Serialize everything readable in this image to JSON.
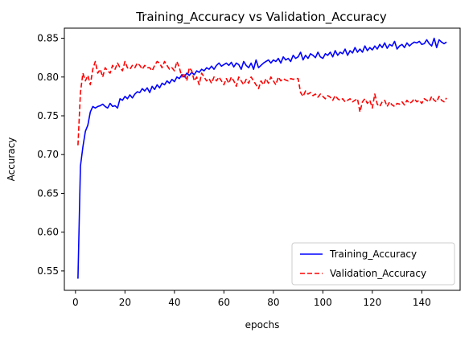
{
  "chart_data": {
    "type": "line",
    "title": "Training_Accuracy vs Validation_Accuracy",
    "xlabel": "epochs",
    "ylabel": "Accuracy",
    "xlim": [
      -4.5,
      155.5
    ],
    "ylim": [
      0.525,
      0.863
    ],
    "xticks": [
      0,
      20,
      40,
      60,
      80,
      100,
      120,
      140
    ],
    "xtick_labels": [
      "0",
      "20",
      "40",
      "60",
      "80",
      "100",
      "120",
      "140"
    ],
    "yticks": [
      0.55,
      0.6,
      0.65,
      0.7,
      0.75,
      0.8,
      0.85
    ],
    "ytick_labels": [
      "0.55",
      "0.60",
      "0.65",
      "0.70",
      "0.75",
      "0.80",
      "0.85"
    ],
    "grid": false,
    "legend_position": "lower-right",
    "series": [
      {
        "name": "Training_Accuracy",
        "color": "#0000ff",
        "style": "solid",
        "x": [
          1,
          2,
          3,
          4,
          5,
          6,
          7,
          8,
          9,
          10,
          11,
          12,
          13,
          14,
          15,
          16,
          17,
          18,
          19,
          20,
          21,
          22,
          23,
          24,
          25,
          26,
          27,
          28,
          29,
          30,
          31,
          32,
          33,
          34,
          35,
          36,
          37,
          38,
          39,
          40,
          41,
          42,
          43,
          44,
          45,
          46,
          47,
          48,
          49,
          50,
          51,
          52,
          53,
          54,
          55,
          56,
          57,
          58,
          59,
          60,
          61,
          62,
          63,
          64,
          65,
          66,
          67,
          68,
          69,
          70,
          71,
          72,
          73,
          74,
          75,
          76,
          77,
          78,
          79,
          80,
          81,
          82,
          83,
          84,
          85,
          86,
          87,
          88,
          89,
          90,
          91,
          92,
          93,
          94,
          95,
          96,
          97,
          98,
          99,
          100,
          101,
          102,
          103,
          104,
          105,
          106,
          107,
          108,
          109,
          110,
          111,
          112,
          113,
          114,
          115,
          116,
          117,
          118,
          119,
          120,
          121,
          122,
          123,
          124,
          125,
          126,
          127,
          128,
          129,
          130,
          131,
          132,
          133,
          134,
          135,
          136,
          137,
          138,
          139,
          140,
          141,
          142,
          143,
          144,
          145,
          146,
          147,
          148,
          149,
          150
        ],
        "values": [
          0.54,
          0.685,
          0.71,
          0.73,
          0.738,
          0.755,
          0.762,
          0.76,
          0.762,
          0.763,
          0.765,
          0.762,
          0.76,
          0.766,
          0.762,
          0.763,
          0.76,
          0.772,
          0.77,
          0.775,
          0.772,
          0.777,
          0.773,
          0.778,
          0.781,
          0.78,
          0.785,
          0.782,
          0.786,
          0.78,
          0.788,
          0.784,
          0.79,
          0.786,
          0.792,
          0.79,
          0.795,
          0.792,
          0.797,
          0.794,
          0.8,
          0.798,
          0.803,
          0.8,
          0.805,
          0.802,
          0.806,
          0.803,
          0.808,
          0.806,
          0.81,
          0.808,
          0.812,
          0.81,
          0.814,
          0.81,
          0.815,
          0.818,
          0.814,
          0.816,
          0.818,
          0.815,
          0.819,
          0.813,
          0.818,
          0.816,
          0.81,
          0.82,
          0.815,
          0.812,
          0.818,
          0.81,
          0.822,
          0.812,
          0.815,
          0.818,
          0.82,
          0.822,
          0.818,
          0.822,
          0.82,
          0.824,
          0.818,
          0.826,
          0.822,
          0.824,
          0.82,
          0.828,
          0.824,
          0.826,
          0.832,
          0.822,
          0.828,
          0.824,
          0.83,
          0.828,
          0.825,
          0.832,
          0.826,
          0.824,
          0.83,
          0.828,
          0.832,
          0.826,
          0.834,
          0.828,
          0.832,
          0.83,
          0.836,
          0.828,
          0.834,
          0.831,
          0.838,
          0.832,
          0.836,
          0.832,
          0.84,
          0.834,
          0.838,
          0.835,
          0.84,
          0.836,
          0.842,
          0.838,
          0.844,
          0.837,
          0.842,
          0.84,
          0.846,
          0.836,
          0.84,
          0.842,
          0.838,
          0.844,
          0.84,
          0.843,
          0.845,
          0.844,
          0.846,
          0.842,
          0.843,
          0.848,
          0.843,
          0.84,
          0.85,
          0.838,
          0.848,
          0.845,
          0.843,
          0.845
        ]
      },
      {
        "name": "Validation_Accuracy",
        "color": "#ff0000",
        "style": "dashed",
        "x": [
          1,
          2,
          3,
          4,
          5,
          6,
          7,
          8,
          9,
          10,
          11,
          12,
          13,
          14,
          15,
          16,
          17,
          18,
          19,
          20,
          21,
          22,
          23,
          24,
          25,
          26,
          27,
          28,
          29,
          30,
          31,
          32,
          33,
          34,
          35,
          36,
          37,
          38,
          39,
          40,
          41,
          42,
          43,
          44,
          45,
          46,
          47,
          48,
          49,
          50,
          51,
          52,
          53,
          54,
          55,
          56,
          57,
          58,
          59,
          60,
          61,
          62,
          63,
          64,
          65,
          66,
          67,
          68,
          69,
          70,
          71,
          72,
          73,
          74,
          75,
          76,
          77,
          78,
          79,
          80,
          81,
          82,
          83,
          84,
          85,
          86,
          87,
          88,
          89,
          90,
          91,
          92,
          93,
          94,
          95,
          96,
          97,
          98,
          99,
          100,
          101,
          102,
          103,
          104,
          105,
          106,
          107,
          108,
          109,
          110,
          111,
          112,
          113,
          114,
          115,
          116,
          117,
          118,
          119,
          120,
          121,
          122,
          123,
          124,
          125,
          126,
          127,
          128,
          129,
          130,
          131,
          132,
          133,
          134,
          135,
          136,
          137,
          138,
          139,
          140,
          141,
          142,
          143,
          144,
          145,
          146,
          147,
          148,
          149,
          150
        ],
        "values": [
          0.712,
          0.78,
          0.805,
          0.795,
          0.802,
          0.79,
          0.81,
          0.82,
          0.805,
          0.81,
          0.8,
          0.812,
          0.808,
          0.805,
          0.815,
          0.81,
          0.818,
          0.812,
          0.808,
          0.82,
          0.812,
          0.81,
          0.815,
          0.812,
          0.818,
          0.815,
          0.81,
          0.815,
          0.812,
          0.812,
          0.808,
          0.815,
          0.82,
          0.818,
          0.812,
          0.82,
          0.815,
          0.81,
          0.812,
          0.808,
          0.82,
          0.812,
          0.8,
          0.805,
          0.795,
          0.812,
          0.808,
          0.795,
          0.8,
          0.79,
          0.805,
          0.8,
          0.795,
          0.798,
          0.792,
          0.8,
          0.795,
          0.8,
          0.795,
          0.79,
          0.798,
          0.792,
          0.8,
          0.795,
          0.788,
          0.8,
          0.795,
          0.79,
          0.797,
          0.792,
          0.8,
          0.795,
          0.79,
          0.785,
          0.795,
          0.79,
          0.798,
          0.792,
          0.8,
          0.795,
          0.79,
          0.8,
          0.795,
          0.798,
          0.796,
          0.795,
          0.798,
          0.797,
          0.798,
          0.798,
          0.78,
          0.775,
          0.782,
          0.778,
          0.78,
          0.776,
          0.778,
          0.774,
          0.778,
          0.775,
          0.772,
          0.776,
          0.774,
          0.77,
          0.776,
          0.772,
          0.77,
          0.772,
          0.768,
          0.77,
          0.772,
          0.768,
          0.77,
          0.772,
          0.755,
          0.768,
          0.772,
          0.766,
          0.77,
          0.76,
          0.778,
          0.765,
          0.762,
          0.768,
          0.77,
          0.762,
          0.768,
          0.764,
          0.762,
          0.766,
          0.765,
          0.768,
          0.764,
          0.77,
          0.766,
          0.768,
          0.772,
          0.768,
          0.77,
          0.766,
          0.772,
          0.77,
          0.768,
          0.775,
          0.77,
          0.768,
          0.775,
          0.77,
          0.768,
          0.773
        ]
      }
    ]
  }
}
